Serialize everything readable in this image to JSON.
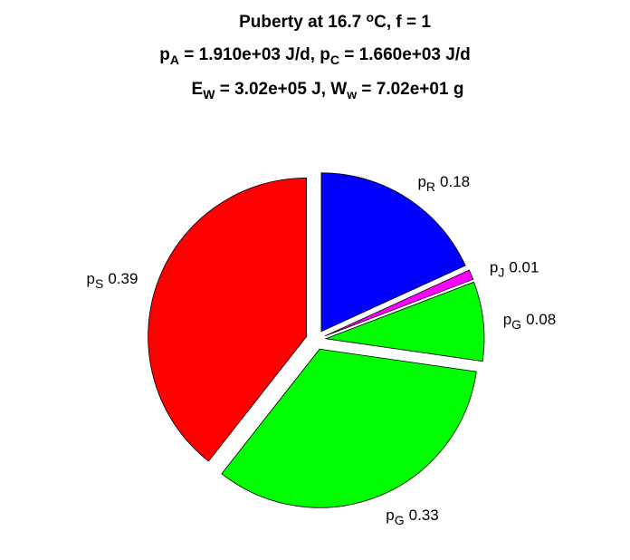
{
  "chart_data": {
    "type": "pie",
    "title": [
      [
        "Puberty at 16.7 ",
        {
          "sup": "o"
        },
        "C, f = 1"
      ],
      [
        "p",
        {
          "sub": "A"
        },
        " = 1.910e+03 J/d,  p",
        {
          "sub": "C"
        },
        " = 1.660e+03 J/d"
      ],
      [
        "E",
        {
          "sub": "W"
        },
        " = 3.02e+05 J, W",
        {
          "sub": "w"
        },
        " = 7.02e+01 g"
      ]
    ],
    "label_symbol": "p",
    "categories": [
      "R",
      "J",
      "G",
      "G",
      "S"
    ],
    "values": [
      0.18,
      0.01,
      0.08,
      0.33,
      0.39
    ],
    "colors": [
      "#0000ff",
      "#ff00ff",
      "#00ff00",
      "#00ff00",
      "#ff0000"
    ],
    "explode": true
  }
}
